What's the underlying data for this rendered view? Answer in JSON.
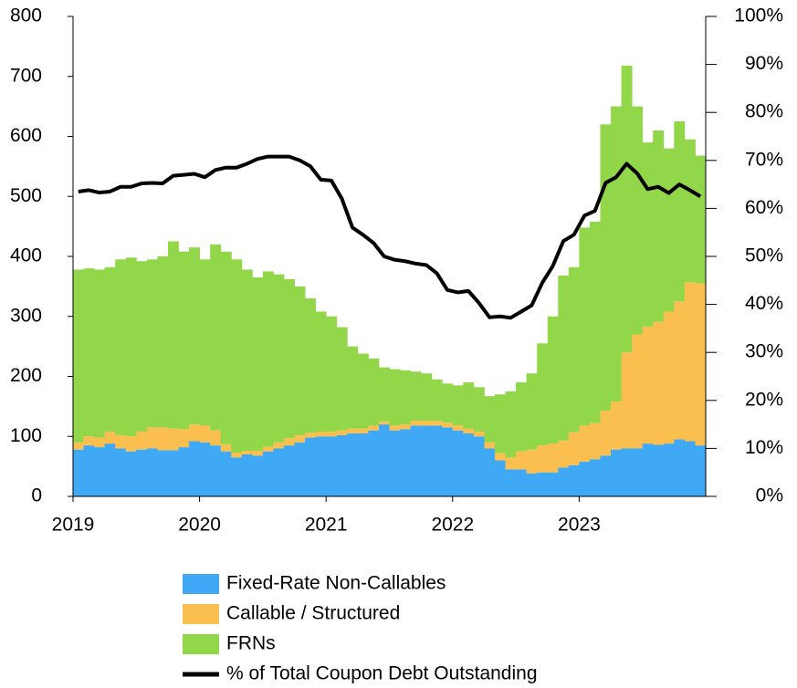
{
  "chart_data": {
    "type": "bar",
    "stacked": true,
    "categories": [
      "2019",
      null,
      null,
      null,
      null,
      null,
      null,
      null,
      null,
      null,
      null,
      null,
      "2020",
      null,
      null,
      null,
      null,
      null,
      null,
      null,
      null,
      null,
      null,
      null,
      "2021",
      null,
      null,
      null,
      null,
      null,
      null,
      null,
      null,
      null,
      null,
      null,
      "2022",
      null,
      null,
      null,
      null,
      null,
      null,
      null,
      null,
      null,
      null,
      null,
      "2023",
      null,
      null,
      null,
      null,
      null,
      null,
      null,
      null,
      null,
      null,
      null
    ],
    "series": [
      {
        "name": "Fixed-Rate Non-Callables",
        "color": "#3fa9f5",
        "values": [
          78,
          85,
          82,
          88,
          80,
          75,
          78,
          80,
          77,
          77,
          82,
          92,
          90,
          85,
          75,
          65,
          70,
          68,
          75,
          80,
          85,
          90,
          98,
          100,
          100,
          102,
          105,
          105,
          110,
          120,
          110,
          112,
          118,
          118,
          118,
          115,
          110,
          105,
          100,
          80,
          60,
          45,
          45,
          38,
          40,
          40,
          48,
          52,
          58,
          62,
          68,
          78,
          80,
          80,
          88,
          86,
          88,
          95,
          92,
          85
        ]
      },
      {
        "name": "Callable / Structured",
        "color": "#fbbf4f",
        "values": [
          12,
          15,
          16,
          20,
          22,
          25,
          30,
          35,
          38,
          36,
          30,
          28,
          28,
          25,
          12,
          8,
          6,
          8,
          8,
          10,
          12,
          12,
          8,
          8,
          8,
          8,
          8,
          8,
          8,
          5,
          8,
          8,
          8,
          8,
          8,
          8,
          8,
          8,
          8,
          10,
          12,
          20,
          30,
          40,
          45,
          48,
          45,
          55,
          60,
          60,
          75,
          80,
          160,
          190,
          195,
          205,
          220,
          230,
          265,
          270
        ]
      },
      {
        "name": "FRNs",
        "color": "#92d64a",
        "values": [
          288,
          280,
          280,
          274,
          293,
          298,
          284,
          280,
          285,
          312,
          296,
          295,
          277,
          310,
          321,
          322,
          302,
          289,
          292,
          280,
          265,
          248,
          224,
          200,
          192,
          172,
          137,
          125,
          112,
          90,
          94,
          90,
          82,
          79,
          69,
          65,
          67,
          77,
          74,
          77,
          98,
          110,
          115,
          127,
          170,
          212,
          275,
          275,
          330,
          336,
          477,
          492,
          478,
          380,
          307,
          319,
          272,
          300,
          238,
          213
        ]
      },
      {
        "name": "% of Total Coupon Debt Outstanding",
        "type": "line",
        "axis": "y2",
        "color": "#000000",
        "values": [
          63.5,
          63.8,
          63.3,
          63.5,
          64.5,
          64.5,
          65.2,
          65.3,
          65.2,
          66.8,
          67.0,
          67.2,
          66.5,
          68.0,
          68.5,
          68.5,
          69.3,
          70.3,
          70.8,
          70.8,
          70.8,
          70.0,
          68.8,
          66.0,
          65.8,
          62.0,
          56.0,
          54.5,
          52.8,
          50.0,
          49.3,
          49.0,
          48.5,
          48.2,
          46.5,
          43.0,
          42.5,
          42.8,
          40.3,
          37.3,
          37.5,
          37.2,
          38.5,
          39.8,
          44.5,
          48.0,
          53.2,
          54.5,
          58.5,
          59.5,
          65.3,
          66.5,
          69.3,
          67.3,
          64.0,
          64.5,
          63.2,
          65.0,
          63.8,
          62.5
        ]
      }
    ],
    "ylim": [
      0,
      800
    ],
    "yticks": [
      0,
      100,
      200,
      300,
      400,
      500,
      600,
      700,
      800
    ],
    "y2lim": [
      0,
      100
    ],
    "y2ticks": [
      {
        "value": 0,
        "label": "0%"
      },
      {
        "value": 10,
        "label": "10%"
      },
      {
        "value": 20,
        "label": "20%"
      },
      {
        "value": 30,
        "label": "30%"
      },
      {
        "value": 40,
        "label": "40%"
      },
      {
        "value": 50,
        "label": "50%"
      },
      {
        "value": 60,
        "label": "60%"
      },
      {
        "value": 70,
        "label": "70%"
      },
      {
        "value": 80,
        "label": "80%"
      },
      {
        "value": 90,
        "label": "90%"
      },
      {
        "value": 100,
        "label": "100%"
      }
    ],
    "legend": "bottom"
  }
}
